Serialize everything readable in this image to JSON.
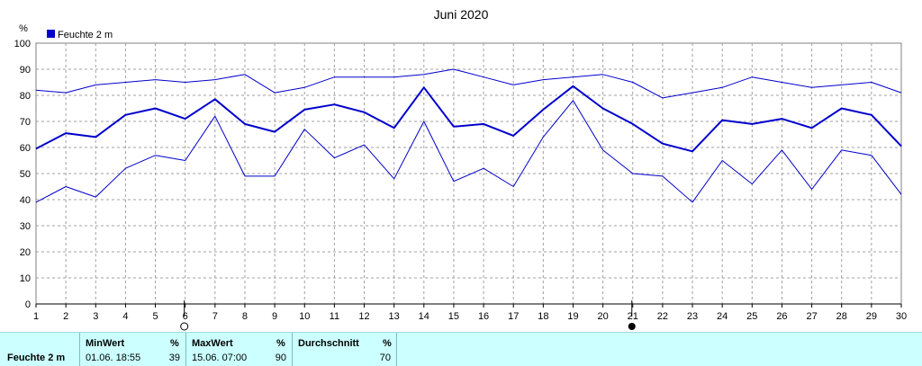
{
  "chart_data": {
    "type": "line",
    "title": "Juni 2020",
    "unit_label": "%",
    "legend": {
      "label": "Feuchte  2 m",
      "color": "#0000cc",
      "placement": "top-left"
    },
    "x": [
      1,
      2,
      3,
      4,
      5,
      6,
      7,
      8,
      9,
      10,
      11,
      12,
      13,
      14,
      15,
      16,
      17,
      18,
      19,
      20,
      21,
      22,
      23,
      24,
      25,
      26,
      27,
      28,
      29,
      30
    ],
    "ylim": [
      0,
      100
    ],
    "yticks": [
      0,
      10,
      20,
      30,
      40,
      50,
      60,
      70,
      80,
      90,
      100
    ],
    "grid": true,
    "series": [
      {
        "role": "max",
        "width": 1,
        "color": "#0000cc",
        "values": [
          82,
          81,
          84,
          85,
          86,
          85,
          86,
          88,
          81,
          83,
          87,
          87,
          87,
          88,
          90,
          87,
          84,
          86,
          87,
          88,
          85,
          79,
          81,
          83,
          87,
          85,
          83,
          84,
          85,
          81
        ]
      },
      {
        "role": "avg",
        "width": 2,
        "color": "#0000cc",
        "values": [
          59.5,
          65.5,
          64,
          72.5,
          75,
          71,
          78.5,
          69,
          66,
          74.5,
          76.5,
          73.5,
          67.5,
          83,
          68,
          69,
          64.5,
          74.5,
          83.5,
          75,
          69,
          61.5,
          58.5,
          70.5,
          69,
          71,
          67.5,
          75,
          72.5,
          60.5
        ]
      },
      {
        "role": "min",
        "width": 1,
        "color": "#0000cc",
        "values": [
          39,
          45,
          41,
          52,
          57,
          55,
          72,
          49,
          49,
          67,
          56,
          61,
          48,
          70,
          47,
          52,
          45,
          64,
          78,
          59,
          50,
          49,
          39,
          55,
          46,
          59,
          44,
          59,
          57,
          42
        ]
      }
    ],
    "moon_markers": [
      {
        "day": 6,
        "phase": "first-quarter-open"
      },
      {
        "day": 21,
        "phase": "new-moon-filled"
      }
    ]
  },
  "stats": {
    "name": "Feuchte  2 m",
    "min_header": "MinWert",
    "min_unit": "%",
    "min_time": "01.06.  18:55",
    "min_value": "39",
    "max_header": "MaxWert",
    "max_unit": "%",
    "max_time": "15.06.  07:00",
    "max_value": "90",
    "avg_header": "Durchschnitt",
    "avg_unit": "%",
    "avg_value": "70"
  }
}
